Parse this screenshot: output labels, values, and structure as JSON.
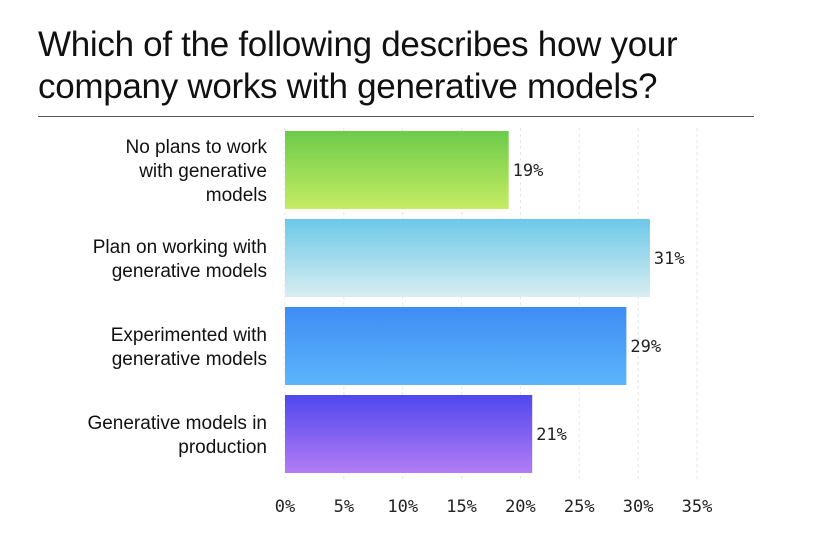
{
  "chart_data": {
    "type": "bar",
    "orientation": "horizontal",
    "title": "Which of the following describes how your company works with generative models?",
    "categories": [
      "No plans to work with generative models",
      "Plan on working with generative models",
      "Experimented with generative models",
      "Generative models in production"
    ],
    "category_lines": [
      [
        "No plans to work",
        "with generative",
        "models"
      ],
      [
        "Plan on working with",
        "generative models"
      ],
      [
        "Experimented with",
        "generative models"
      ],
      [
        "Generative models in",
        "production"
      ]
    ],
    "values": [
      19,
      31,
      29,
      21
    ],
    "value_labels": [
      "19%",
      "31%",
      "29%",
      "21%"
    ],
    "xlim": [
      0,
      35
    ],
    "xticks": [
      0,
      5,
      10,
      15,
      20,
      25,
      30,
      35
    ],
    "xtick_labels": [
      "0%",
      "5%",
      "10%",
      "15%",
      "20%",
      "25%",
      "30%",
      "35%"
    ],
    "grid": true,
    "bar_gradients": [
      [
        "#6ccb4a",
        "#c5ec63"
      ],
      [
        "#6cc8e8",
        "#d8edf1"
      ],
      [
        "#3f8cf5",
        "#5cb5fa"
      ],
      [
        "#4f47ee",
        "#b37cf5"
      ]
    ]
  }
}
